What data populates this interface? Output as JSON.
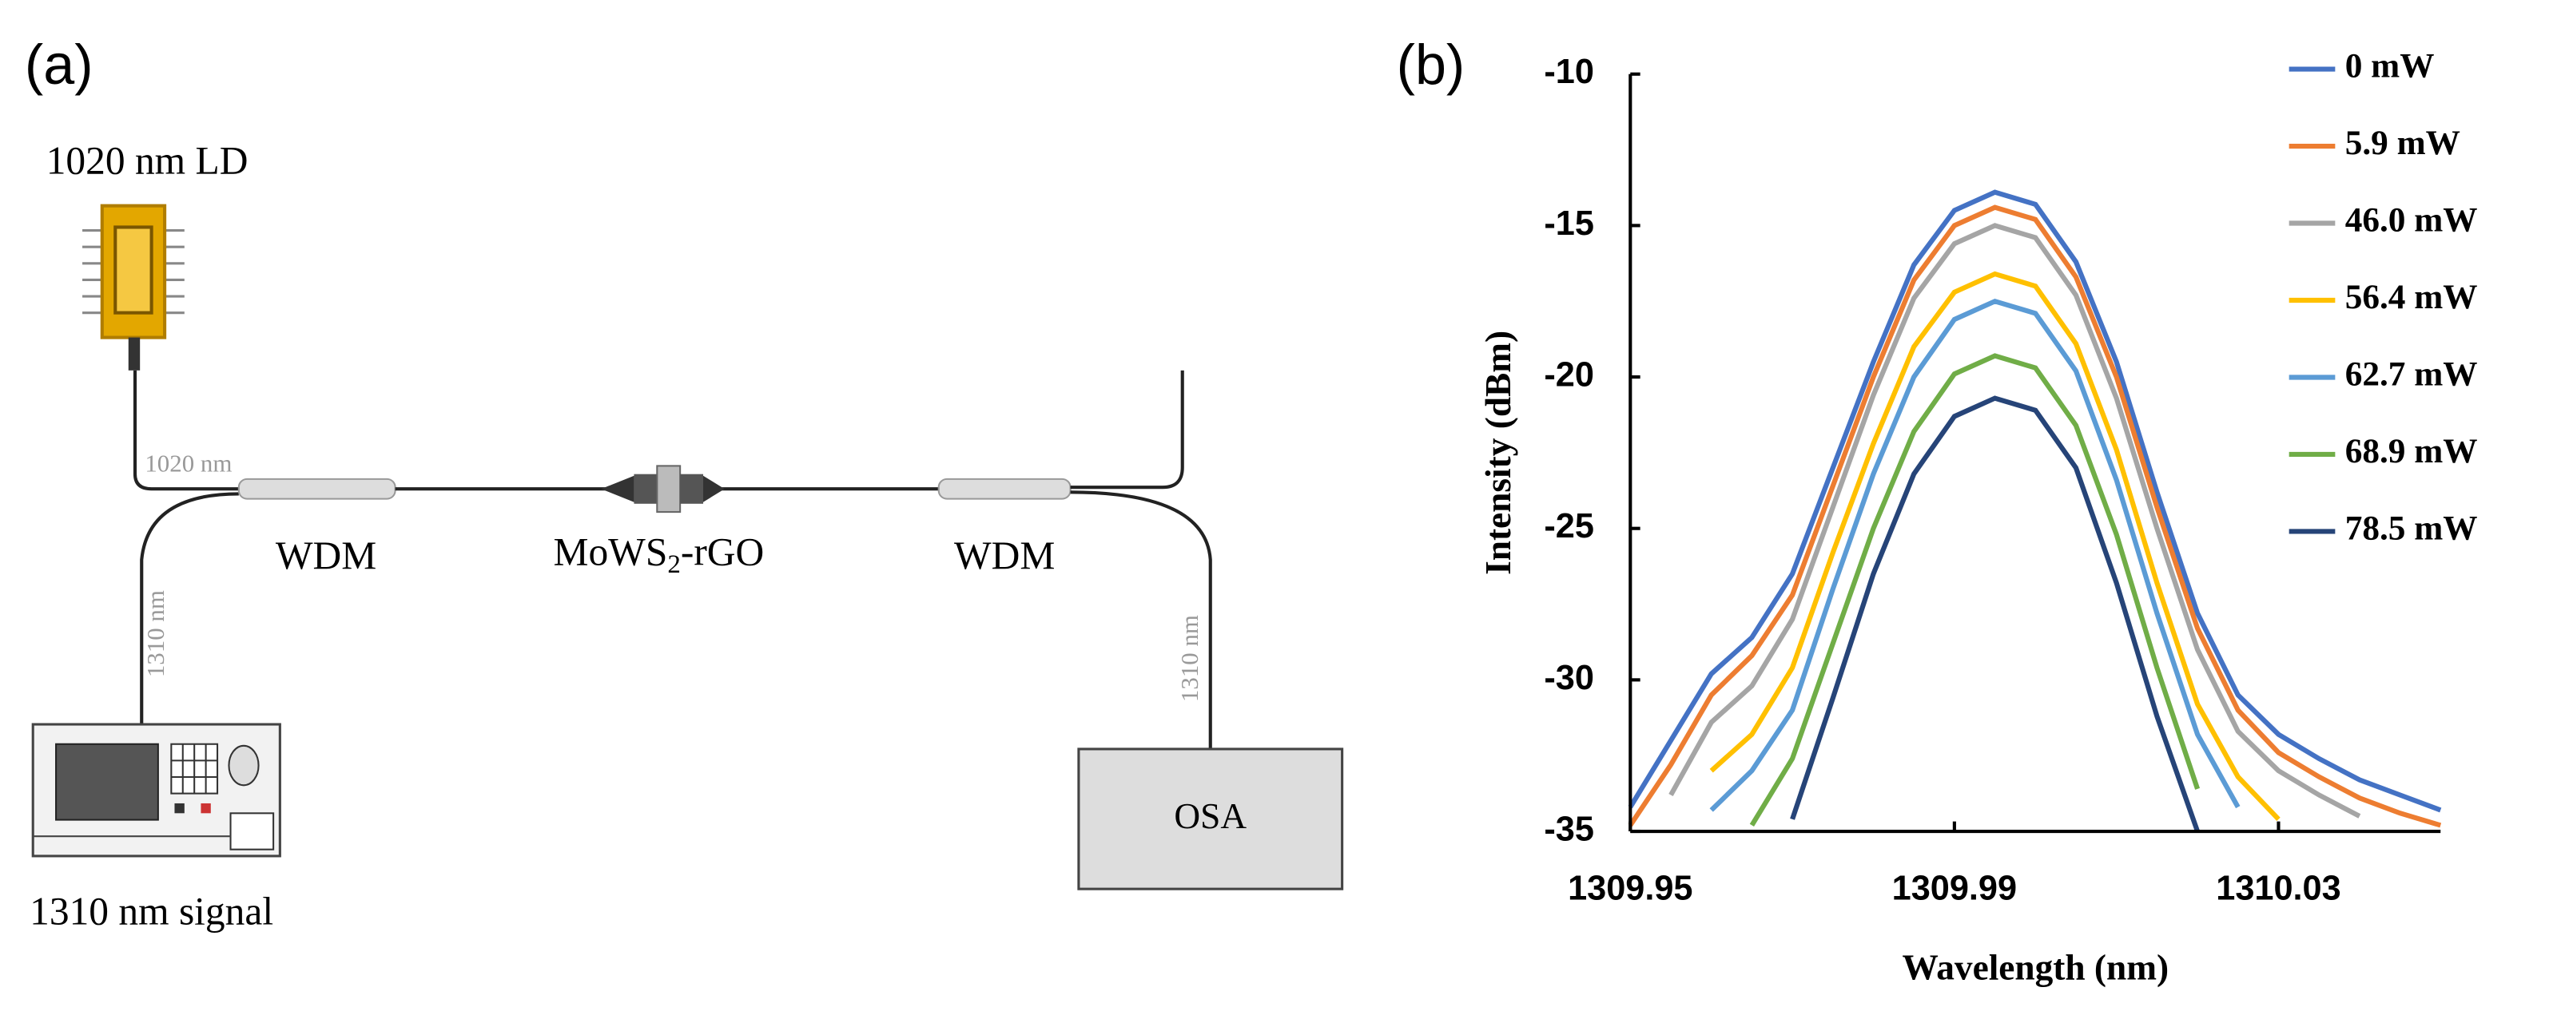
{
  "panel_a": {
    "label": "(a)",
    "laser": "1020 nm LD",
    "pump_fiber": "1020 nm",
    "signal_fiber": "1310 nm",
    "output_fiber": "1310 nm",
    "wdm_left": "WDM",
    "wdm_right": "WDM",
    "sample": {
      "text": "MoWS",
      "sub": "2",
      "tail": "-rGO"
    },
    "analyzer": "OSA",
    "source": "1310 nm signal"
  },
  "chart_data": {
    "type": "line",
    "panel_label": "(b)",
    "xlabel": "Wavelength (nm)",
    "ylabel": "Intensity (dBm)",
    "xlim": [
      1309.95,
      1310.05
    ],
    "xticks": [
      1309.95,
      1309.99,
      1310.03
    ],
    "ylim": [
      -35,
      -10
    ],
    "yticks": [
      -10,
      -15,
      -20,
      -25,
      -30,
      -35
    ],
    "legend": "right",
    "x": [
      1309.95,
      1309.955,
      1309.96,
      1309.965,
      1309.97,
      1309.975,
      1309.98,
      1309.985,
      1309.99,
      1309.995,
      1310.0,
      1310.005,
      1310.01,
      1310.015,
      1310.02,
      1310.025,
      1310.03,
      1310.035,
      1310.04,
      1310.045,
      1310.05
    ],
    "series": [
      {
        "name": "0 mW",
        "color": "#4472c4",
        "values": [
          -34.2,
          -32.0,
          -29.8,
          -28.6,
          -26.5,
          -23.0,
          -19.5,
          -16.3,
          -14.5,
          -13.9,
          -14.3,
          -16.2,
          -19.5,
          -23.8,
          -27.8,
          -30.5,
          -31.8,
          -32.6,
          -33.3,
          -33.8,
          -34.3
        ]
      },
      {
        "name": "5.9 mW",
        "color": "#ed7d31",
        "values": [
          -34.8,
          -32.8,
          -30.5,
          -29.2,
          -27.2,
          -23.6,
          -20.0,
          -16.8,
          -15.0,
          -14.4,
          -14.8,
          -16.7,
          -20.0,
          -24.3,
          -28.3,
          -31.0,
          -32.4,
          -33.2,
          -33.9,
          -34.4,
          -34.8
        ]
      },
      {
        "name": "46.0 mW",
        "color": "#a5a5a5",
        "values": [
          null,
          -33.8,
          -31.4,
          -30.2,
          -28.0,
          -24.3,
          -20.6,
          -17.4,
          -15.6,
          -15.0,
          -15.4,
          -17.3,
          -20.7,
          -25.0,
          -29.0,
          -31.7,
          -33.0,
          -33.8,
          -34.5,
          null,
          null
        ]
      },
      {
        "name": "56.4 mW",
        "color": "#ffc000",
        "values": [
          null,
          null,
          -33.0,
          -31.8,
          -29.6,
          -25.8,
          -22.2,
          -19.0,
          -17.2,
          -16.6,
          -17.0,
          -18.9,
          -22.4,
          -26.8,
          -30.8,
          -33.2,
          -34.6,
          null,
          null,
          null,
          null
        ]
      },
      {
        "name": "62.7 mW",
        "color": "#5b9bd5",
        "values": [
          null,
          null,
          -34.3,
          -33.0,
          -31.0,
          -27.0,
          -23.2,
          -20.0,
          -18.1,
          -17.5,
          -17.9,
          -19.8,
          -23.4,
          -27.8,
          -31.8,
          -34.2,
          null,
          null,
          null,
          null,
          null
        ]
      },
      {
        "name": "68.9 mW",
        "color": "#70ad47",
        "values": [
          null,
          null,
          null,
          -34.8,
          -32.6,
          -28.8,
          -25.0,
          -21.8,
          -19.9,
          -19.3,
          -19.7,
          -21.6,
          -25.2,
          -29.6,
          -33.6,
          null,
          null,
          null,
          null,
          null,
          null
        ]
      },
      {
        "name": "78.5 mW",
        "color": "#264478",
        "values": [
          null,
          null,
          null,
          null,
          -34.6,
          -30.6,
          -26.5,
          -23.2,
          -21.3,
          -20.7,
          -21.1,
          -23.0,
          -26.8,
          -31.2,
          -35.0,
          null,
          null,
          null,
          null,
          null,
          null
        ]
      }
    ]
  }
}
